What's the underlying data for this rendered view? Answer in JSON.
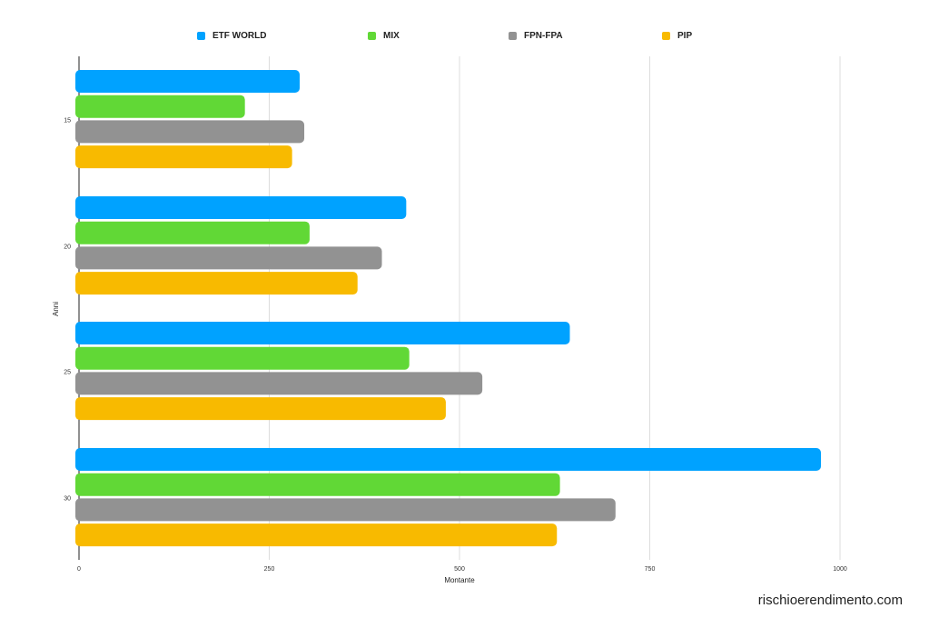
{
  "chart_data": {
    "type": "bar",
    "orientation": "horizontal",
    "categories": [
      "15",
      "20",
      "25",
      "30"
    ],
    "series": [
      {
        "name": "ETF WORLD",
        "color": "#00A2FF",
        "values": [
          290,
          430,
          645,
          975
        ]
      },
      {
        "name": "MIX",
        "color": "#61D836",
        "values": [
          218,
          303,
          434,
          632
        ]
      },
      {
        "name": "FPN-FPA",
        "color": "#929292",
        "values": [
          296,
          398,
          530,
          705
        ]
      },
      {
        "name": "PIP",
        "color": "#F8BA00",
        "values": [
          280,
          366,
          482,
          628
        ]
      }
    ],
    "xlabel": "Montante",
    "ylabel": "Anni",
    "xlim": [
      0,
      1000
    ],
    "xticks": [
      "0",
      "250",
      "500",
      "750",
      "1000"
    ],
    "grid": true,
    "legend_position": "top"
  },
  "credit": "rischioerendimento.com"
}
